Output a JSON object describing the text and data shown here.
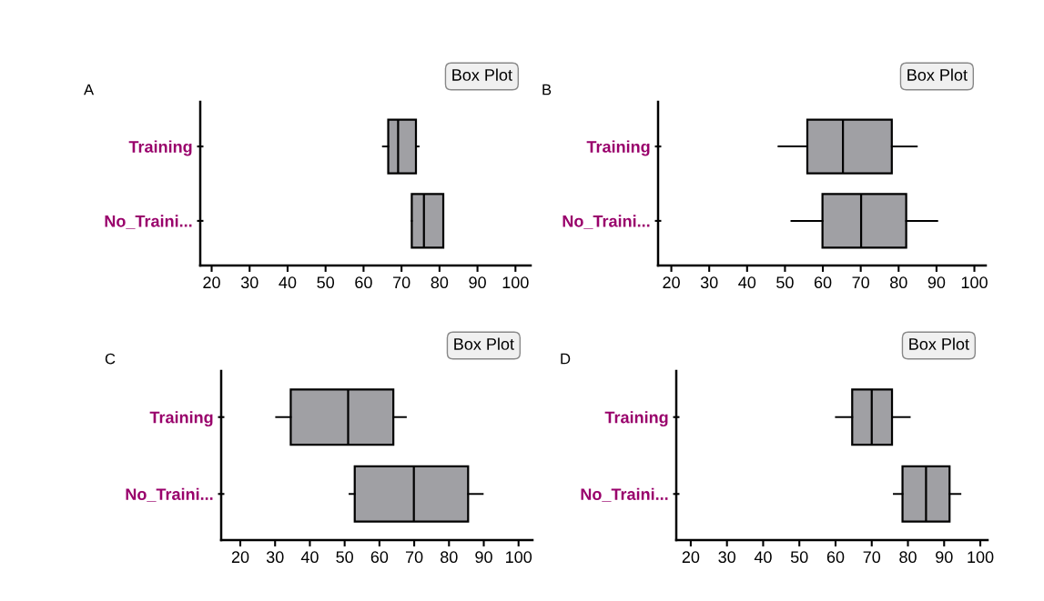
{
  "chart_data": [
    {
      "type": "box",
      "title": "A",
      "orientation": "horizontal",
      "categories": [
        "Training",
        "No_Traini..."
      ],
      "color": "#a0a0a4",
      "xlim": [
        17,
        104
      ],
      "xticks": [
        20,
        30,
        40,
        50,
        60,
        70,
        80,
        90,
        100
      ],
      "grid": false,
      "annotations": [
        "Box Plot"
      ],
      "boxes": [
        {
          "low": 65.1,
          "q1": 66.5,
          "median": 69.1,
          "q3": 73.8,
          "high": 74.5
        },
        {
          "low": 72.7,
          "q1": 72.7,
          "median": 75.9,
          "q3": 81.0,
          "high": 81.0
        }
      ]
    },
    {
      "type": "box",
      "title": "B",
      "orientation": "horizontal",
      "categories": [
        "Training",
        "No_Traini..."
      ],
      "color": "#a0a0a4",
      "xlim": [
        16.5,
        103
      ],
      "xticks": [
        20,
        30,
        40,
        50,
        60,
        70,
        80,
        90,
        100
      ],
      "grid": false,
      "annotations": [
        "Box Plot"
      ],
      "boxes": [
        {
          "low": 48.3,
          "q1": 55.9,
          "median": 65.3,
          "q3": 78.2,
          "high": 84.8
        },
        {
          "low": 51.7,
          "q1": 59.9,
          "median": 70.1,
          "q3": 82.0,
          "high": 90.2
        }
      ]
    },
    {
      "type": "box",
      "title": "C",
      "orientation": "horizontal",
      "categories": [
        "Training",
        "No_Traini..."
      ],
      "color": "#a0a0a4",
      "xlim": [
        14.5,
        104
      ],
      "xticks": [
        20,
        30,
        40,
        50,
        60,
        70,
        80,
        90,
        100
      ],
      "grid": false,
      "annotations": [
        "Box Plot"
      ],
      "boxes": [
        {
          "low": 30.3,
          "q1": 34.5,
          "median": 51.0,
          "q3": 64.0,
          "high": 67.6
        },
        {
          "low": 51.4,
          "q1": 52.9,
          "median": 69.9,
          "q3": 85.5,
          "high": 89.7
        }
      ]
    },
    {
      "type": "box",
      "title": "D",
      "orientation": "horizontal",
      "categories": [
        "Training",
        "No_Traini..."
      ],
      "color": "#a0a0a4",
      "xlim": [
        16,
        102
      ],
      "xticks": [
        20,
        30,
        40,
        50,
        60,
        70,
        80,
        90,
        100
      ],
      "grid": false,
      "annotations": [
        "Box Plot"
      ],
      "boxes": [
        {
          "low": 60.1,
          "q1": 64.6,
          "median": 70.0,
          "q3": 75.6,
          "high": 80.5
        },
        {
          "low": 76.1,
          "q1": 78.5,
          "median": 85.0,
          "q3": 91.5,
          "high": 94.5
        }
      ]
    }
  ]
}
